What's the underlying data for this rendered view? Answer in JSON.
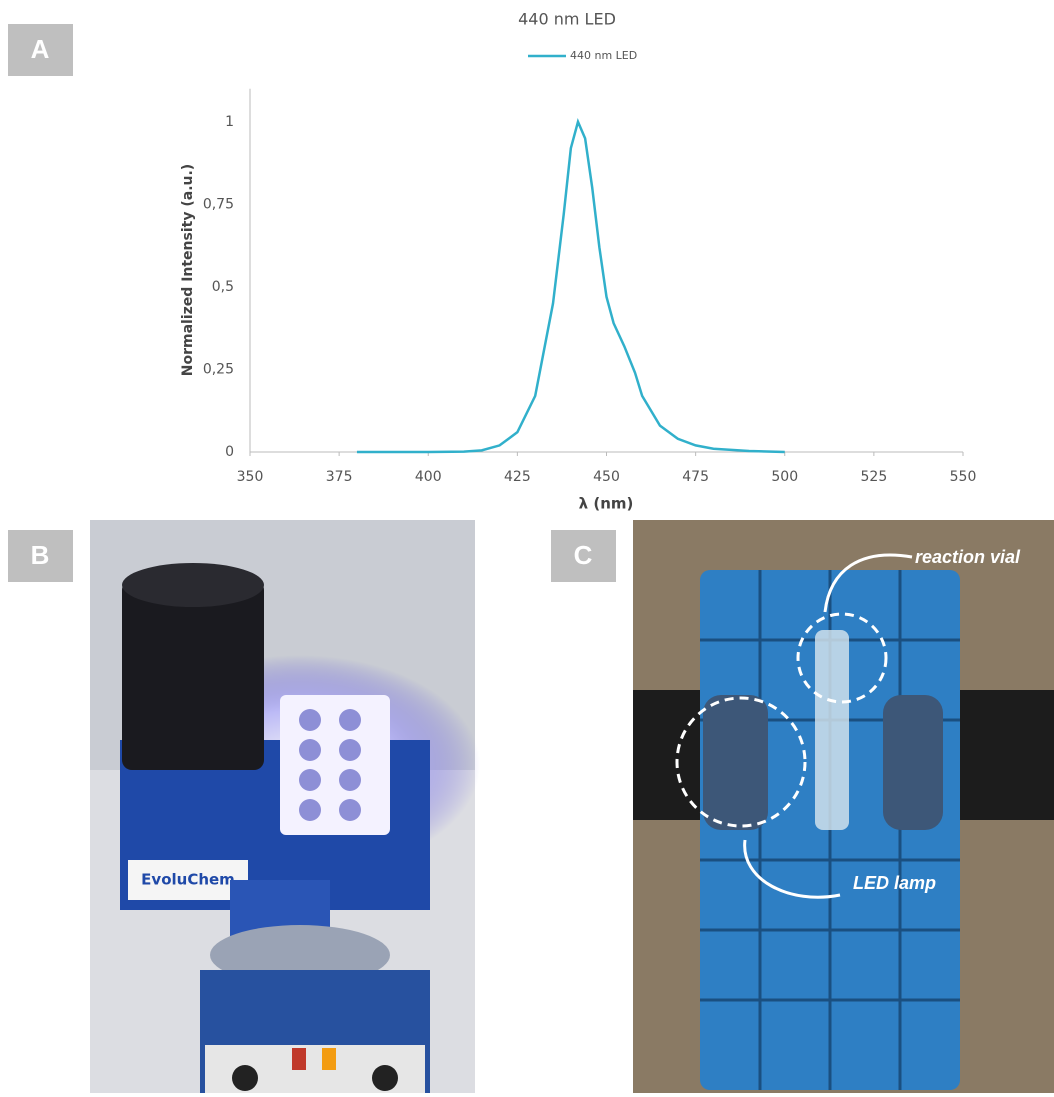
{
  "chart_data": {
    "type": "line",
    "title": "440 nm LED",
    "x_label": "λ (nm)",
    "y_label": "Normalized Intensity (a.u.)",
    "x": [
      380,
      390,
      400,
      410,
      415,
      420,
      425,
      430,
      435,
      438,
      440,
      442,
      444,
      446,
      448,
      450,
      452,
      455,
      458,
      460,
      465,
      470,
      475,
      480,
      490,
      500
    ],
    "series": [
      {
        "name": "440 nm LED",
        "color": "#31b0cb",
        "values": [
          0,
          0,
          0,
          0.001,
          0.005,
          0.02,
          0.06,
          0.17,
          0.45,
          0.72,
          0.92,
          1.0,
          0.95,
          0.8,
          0.62,
          0.47,
          0.39,
          0.32,
          0.24,
          0.17,
          0.08,
          0.04,
          0.02,
          0.01,
          0.003,
          0
        ]
      }
    ],
    "xlim": [
      350,
      550
    ],
    "xticks": [
      350,
      375,
      400,
      425,
      450,
      475,
      500,
      525,
      550
    ],
    "ylim": [
      0,
      1.1
    ],
    "yticks": [
      0,
      {
        "value": 0.25,
        "label": "0,25"
      },
      {
        "value": 0.5,
        "label": "0,5"
      },
      {
        "value": 0.75,
        "label": "0,75"
      },
      1
    ],
    "grid": false,
    "legend": "top"
  },
  "panels": [
    "A",
    "B",
    "C"
  ],
  "photo_b": {
    "device_label": "EvoluChem"
  },
  "photo_c": {
    "annotations": [
      "reaction vial",
      "LED lamp"
    ]
  }
}
